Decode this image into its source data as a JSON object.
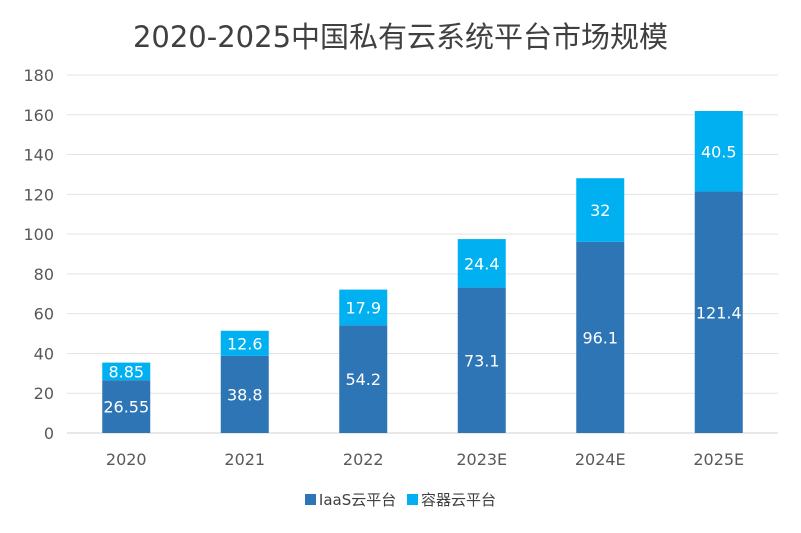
{
  "chart_data": {
    "type": "bar",
    "stacked": true,
    "title": "2020-2025中国私有云系统平台市场规模",
    "categories": [
      "2020",
      "2021",
      "2022",
      "2023E",
      "2024E",
      "2025E"
    ],
    "series": [
      {
        "name": "IaaS云平台",
        "color": "#2E75B6",
        "values": [
          26.55,
          38.8,
          54.2,
          73.1,
          96.1,
          121.4
        ]
      },
      {
        "name": "容器云平台",
        "color": "#00B0F0",
        "values": [
          8.85,
          12.6,
          17.9,
          24.4,
          32,
          40.5
        ]
      }
    ],
    "ylim": [
      0,
      180
    ],
    "yticks": [
      0,
      20,
      40,
      60,
      80,
      100,
      120,
      140,
      160,
      180
    ],
    "xlabel": "",
    "ylabel": "",
    "grid": true,
    "legend": "bottom"
  }
}
